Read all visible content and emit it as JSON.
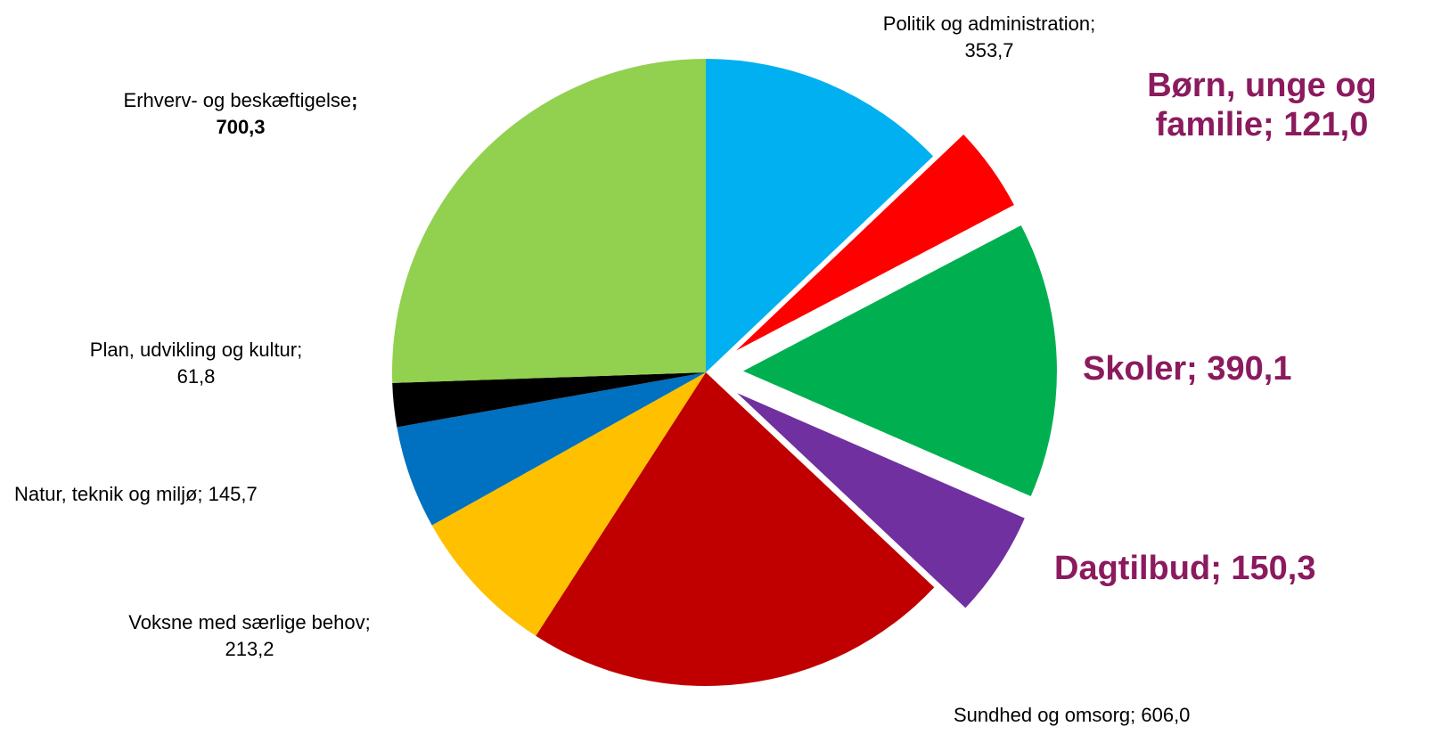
{
  "chart_data": {
    "type": "pie",
    "legend": "none",
    "slices": [
      {
        "name": "Politik og administration",
        "value": 353.7,
        "value_label": "353,7",
        "color": "#00b0f0",
        "exploded": false,
        "highlight": false
      },
      {
        "name": "Børn, unge og familie",
        "value": 121.0,
        "value_label": "121,0",
        "color": "#ff0000",
        "exploded": true,
        "highlight": true
      },
      {
        "name": "Skoler",
        "value": 390.1,
        "value_label": "390,1",
        "color": "#00b050",
        "exploded": true,
        "highlight": true
      },
      {
        "name": "Dagtilbud",
        "value": 150.3,
        "value_label": "150,3",
        "color": "#7030a0",
        "exploded": true,
        "highlight": true
      },
      {
        "name": "Sundhed og omsorg",
        "value": 606.0,
        "value_label": "606,0",
        "color": "#c00000",
        "exploded": false,
        "highlight": false
      },
      {
        "name": "Voksne med særlige behov",
        "value": 213.2,
        "value_label": "213,2",
        "color": "#ffc000",
        "exploded": false,
        "highlight": false
      },
      {
        "name": "Natur, teknik og miljø",
        "value": 145.7,
        "value_label": "145,7",
        "color": "#0070c0",
        "exploded": false,
        "highlight": false
      },
      {
        "name": "Plan, udvikling og kultur",
        "value": 61.8,
        "value_label": "61,8",
        "color": "#000000",
        "exploded": false,
        "highlight": false
      },
      {
        "name": "Erhverv- og beskæftigelse",
        "value": 700.3,
        "value_label": "700,3",
        "color": "#92d050",
        "exploded": false,
        "highlight": false
      }
    ]
  },
  "labels": {
    "politik": {
      "line1": "Politik og administration;",
      "line2": "353,7"
    },
    "born": {
      "line1": "Børn, unge og",
      "line2": "familie; 121,0"
    },
    "skoler": {
      "text": "Skoler; 390,1"
    },
    "dagtilbud": {
      "text": "Dagtilbud; 150,3"
    },
    "sundhed": {
      "text": "Sundhed og omsorg; 606,0"
    },
    "voksne": {
      "line1": "Voksne med særlige behov;",
      "line2": "213,2"
    },
    "natur": {
      "text": "Natur, teknik og miljø; 145,7"
    },
    "plan": {
      "line1": "Plan, udvikling og kultur;",
      "line2": "61,8"
    },
    "erhverv": {
      "line1": "Erhverv- og beskæftigelse",
      "semicolon": ";",
      "line2": "700,3"
    }
  }
}
